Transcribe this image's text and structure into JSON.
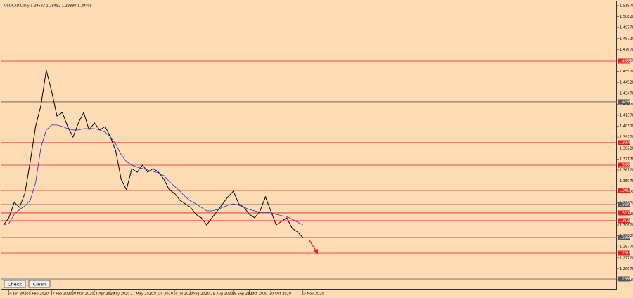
{
  "chart_data": {
    "type": "line",
    "title": "USDCAD,Daily  1.29583 1.29482 1.29380 1.29405",
    "buttons": [
      "Check",
      "Clean"
    ],
    "categories": [
      null,
      "24 Jan 2020",
      null,
      null,
      null,
      "5 Feb 2020",
      null,
      null,
      null,
      "27 Feb 2020",
      null,
      null,
      null,
      "20 Mar 2020",
      null,
      null,
      null,
      "13 Apr 2020",
      null,
      null,
      "5 May 2020",
      null,
      null,
      null,
      "27 May 2020",
      null,
      null,
      null,
      "18 Jun 2020",
      null,
      null,
      null,
      "10 Jul 2020",
      null,
      null,
      "3 Aug 2020",
      null,
      null,
      null,
      "25 Aug 2020",
      null,
      null,
      null,
      "16 Sep 2020",
      null,
      null,
      "8 Oct 2020",
      null,
      null,
      null,
      "30 Oct 2020",
      null,
      null,
      null,
      null,
      null,
      "23 Nov 2020"
    ],
    "series": [
      {
        "color": "#000000",
        "values": [
          1.3087,
          1.3155,
          1.3303,
          1.3255,
          1.339,
          1.3693,
          1.4029,
          1.4231,
          1.4568,
          1.4366,
          1.413,
          1.4164,
          1.4029,
          1.3928,
          1.4063,
          1.4164,
          1.3996,
          1.4063,
          1.3996,
          1.4029,
          1.3928,
          1.3794,
          1.3525,
          1.3424,
          1.3626,
          1.3592,
          1.3659,
          1.3592,
          1.3626,
          1.3592,
          1.3525,
          1.3424,
          1.339,
          1.3323,
          1.3289,
          1.3255,
          1.3188,
          1.3155,
          1.3087,
          1.3155,
          1.3222,
          1.3289,
          1.3356,
          1.341,
          1.3289,
          1.3255,
          1.3188,
          1.3155,
          1.3222,
          1.3356,
          1.3222,
          1.3087,
          1.3121,
          1.3155,
          1.3054,
          1.302,
          1.2966
        ]
      },
      {
        "color": "#2a2ad8",
        "values": [
          1.3087,
          1.3101,
          1.3188,
          1.3235,
          1.3269,
          1.3323,
          1.3491,
          1.3828,
          1.3996,
          1.4043,
          1.4043,
          1.4029,
          1.4009,
          1.3996,
          1.3996,
          1.4009,
          1.4009,
          1.4009,
          1.3996,
          1.3976,
          1.3928,
          1.3861,
          1.376,
          1.3693,
          1.3659,
          1.3639,
          1.3626,
          1.3612,
          1.3599,
          1.3585,
          1.3558,
          1.3504,
          1.3457,
          1.341,
          1.3356,
          1.3316,
          1.3289,
          1.3255,
          1.3222,
          1.3222,
          1.3235,
          1.3255,
          1.3276,
          1.3289,
          1.3276,
          1.3255,
          1.3235,
          1.3222,
          1.3208,
          1.3208,
          1.3202,
          1.3188,
          1.3175,
          1.3168,
          1.3141,
          1.3114,
          1.3087
        ]
      }
    ],
    "ylim": [
      1.2468,
      1.5227
    ],
    "yticks": [
      {
        "value": 1.5187,
        "label": "1.51870"
      },
      {
        "value": 1.5082,
        "label": "1.50820"
      },
      {
        "value": 1.4977,
        "label": "1.49770"
      },
      {
        "value": 1.4872,
        "label": "1.48720"
      },
      {
        "value": 1.4767,
        "label": "1.47670"
      },
      {
        "value": 1.4662,
        "label": "1.46620"
      },
      {
        "value": 1.4557,
        "label": "1.45570"
      },
      {
        "value": 1.4452,
        "label": "1.44520"
      },
      {
        "value": 1.4347,
        "label": "1.43470"
      },
      {
        "value": 1.4242,
        "label": "1.42420"
      },
      {
        "value": 1.4137,
        "label": "1.41370"
      },
      {
        "value": 1.4032,
        "label": "1.40320"
      },
      {
        "value": 1.3927,
        "label": "1.39270"
      },
      {
        "value": 1.3822,
        "label": "1.38220"
      },
      {
        "value": 1.3717,
        "label": "1.37170"
      },
      {
        "value": 1.3612,
        "label": "1.36120"
      },
      {
        "value": 1.3507,
        "label": "1.35070"
      },
      {
        "value": 1.3402,
        "label": "1.34020"
      },
      {
        "value": 1.3297,
        "label": "1.32970"
      },
      {
        "value": 1.3192,
        "label": "1.31920"
      },
      {
        "value": 1.3087,
        "label": "1.30870"
      },
      {
        "value": 1.2982,
        "label": "1.29820"
      },
      {
        "value": 1.2877,
        "label": "1.28770"
      },
      {
        "value": 1.2772,
        "label": "1.27720"
      },
      {
        "value": 1.2667,
        "label": "1.26670"
      },
      {
        "value": 1.2562,
        "label": "1.25620"
      }
    ],
    "levels": [
      {
        "value": 1.4655,
        "label": "1.46550",
        "color": "#e02020"
      },
      {
        "value": 1.4265,
        "label": "1.42650",
        "color": "#555555"
      },
      {
        "value": 1.3875,
        "label": "1.38750",
        "color": "#e02020"
      },
      {
        "value": 1.3659,
        "label": "1.36590",
        "color": "#e02020"
      },
      {
        "value": 1.3417,
        "label": "1.34170",
        "color": "#e02020"
      },
      {
        "value": 1.3282,
        "label": "1.32820",
        "color": "#555555"
      },
      {
        "value": 1.3202,
        "label": "1.32020",
        "color": "#e02020"
      },
      {
        "value": 1.3128,
        "label": "1.31280",
        "color": "#e02020"
      },
      {
        "value": 1.2966,
        "label": "1.29660",
        "color": "#555555"
      },
      {
        "value": 1.2818,
        "label": "1.28180",
        "color": "#e02020"
      },
      {
        "value": 1.2569,
        "label": "1.25690",
        "color": "#555555"
      }
    ]
  }
}
